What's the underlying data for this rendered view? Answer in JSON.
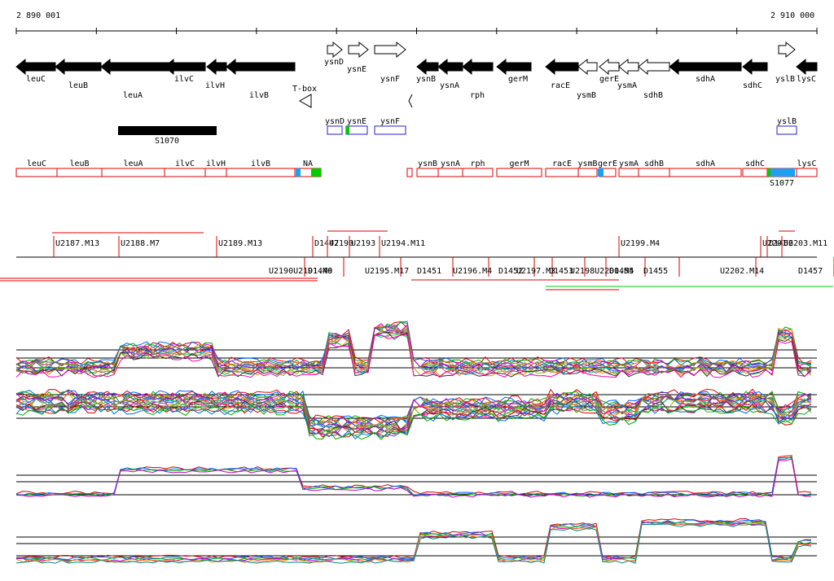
{
  "coordinates": {
    "left": "2 890 001",
    "right": "2 910 000"
  },
  "genes_black": [
    {
      "label": "leuC",
      "strand": "-"
    },
    {
      "label": "leuB",
      "strand": "-"
    },
    {
      "label": "leuA",
      "strand": "-"
    },
    {
      "label": "ilvC",
      "strand": "-"
    },
    {
      "label": "ilvH",
      "strand": "-"
    },
    {
      "label": "ilvB",
      "strand": "-"
    },
    {
      "label": "ysnB",
      "strand": "-"
    },
    {
      "label": "ysnA",
      "strand": "-"
    },
    {
      "label": "rph",
      "strand": "-"
    },
    {
      "label": "gerM",
      "strand": "-"
    },
    {
      "label": "racE",
      "strand": "-"
    },
    {
      "label": "sdhA",
      "strand": "-"
    },
    {
      "label": "sdhC",
      "strand": "-"
    },
    {
      "label": "lysC",
      "strand": "-"
    }
  ],
  "genes_white": [
    {
      "label": "ysnD",
      "strand": "+"
    },
    {
      "label": "ysnE",
      "strand": "+"
    },
    {
      "label": "ysnF",
      "strand": "+"
    },
    {
      "label": "ysmB",
      "strand": "-"
    },
    {
      "label": "gerE",
      "strand": "-"
    },
    {
      "label": "ysmA",
      "strand": "-"
    },
    {
      "label": "sdhB",
      "strand": "-"
    },
    {
      "label": "yslB",
      "strand": "+"
    }
  ],
  "terminator_label": "T-box",
  "black_block_label": "S1070",
  "blue_boxes": [
    "ysnD",
    "ysnE",
    "ysnF",
    "yslB"
  ],
  "red_boxes": [
    "leuC",
    "leuB",
    "leuA",
    "ilvC",
    "ilvH",
    "ilvB",
    "NA",
    "ysnB",
    "ysnA",
    "rph",
    "gerM",
    "racE",
    "ysmB",
    "gerE",
    "ysmA",
    "sdhB",
    "sdhA",
    "sdhC",
    "lysC"
  ],
  "red_box_extra_label": "S1077",
  "upper_tus": [
    "U2187.M13",
    "U2188.M7",
    "U2189.M13",
    "D1447",
    "U2190",
    "U2193",
    "U2194.M11",
    "U2199.M4",
    "U2201",
    "D1456",
    "U2203.M11"
  ],
  "lower_tus": [
    "U2190U2191.M9",
    "D1446",
    "U2195.M17",
    "D1451",
    "U2196.M4",
    "D1452",
    "U2197.M3",
    "D1453",
    "U2198U2200.M5",
    "D1454",
    "D1455",
    "U2202.M14",
    "D1457"
  ],
  "colors": {
    "gene": "#000000",
    "box_red": "#dd0000",
    "box_blue": "#2222cc",
    "green": "#00cc00",
    "cyan": "#1ea0f0",
    "trace_red": "#dd0000"
  }
}
